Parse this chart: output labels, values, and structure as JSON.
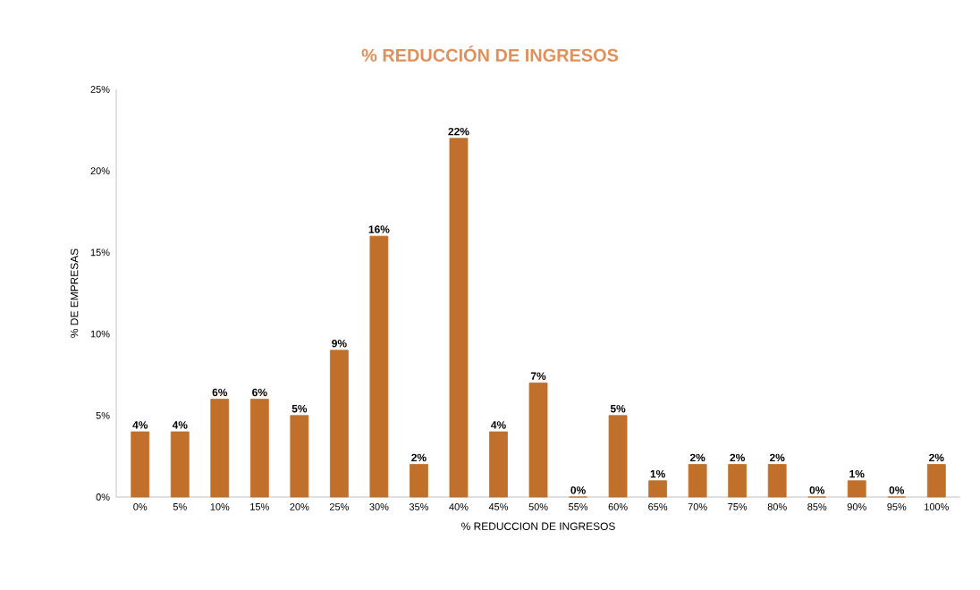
{
  "chart_data": {
    "type": "bar",
    "title": "% REDUCCIÓN DE INGRESOS",
    "xlabel": "% REDUCCION DE INGRESOS",
    "ylabel": "% DE EMPRESAS",
    "categories": [
      "0%",
      "5%",
      "10%",
      "15%",
      "20%",
      "25%",
      "30%",
      "35%",
      "40%",
      "45%",
      "50%",
      "55%",
      "60%",
      "65%",
      "70%",
      "75%",
      "80%",
      "85%",
      "90%",
      "95%",
      "100%"
    ],
    "values": [
      4,
      4,
      6,
      6,
      5,
      9,
      16,
      2,
      22,
      4,
      7,
      0,
      5,
      1,
      2,
      2,
      2,
      0,
      1,
      0,
      2
    ],
    "value_labels": [
      "4%",
      "4%",
      "6%",
      "6%",
      "5%",
      "9%",
      "16%",
      "2%",
      "22%",
      "4%",
      "7%",
      "0%",
      "5%",
      "1%",
      "2%",
      "2%",
      "2%",
      "0%",
      "1%",
      "0%",
      "2%"
    ],
    "color": "#c0702a",
    "ylim": [
      0,
      25
    ],
    "yticks": [
      {
        "value": 0,
        "label": "0%"
      },
      {
        "value": 5,
        "label": "5%"
      },
      {
        "value": 10,
        "label": "10%"
      },
      {
        "value": 15,
        "label": "15%"
      },
      {
        "value": 20,
        "label": "20%"
      },
      {
        "value": 25,
        "label": "25%"
      }
    ]
  }
}
